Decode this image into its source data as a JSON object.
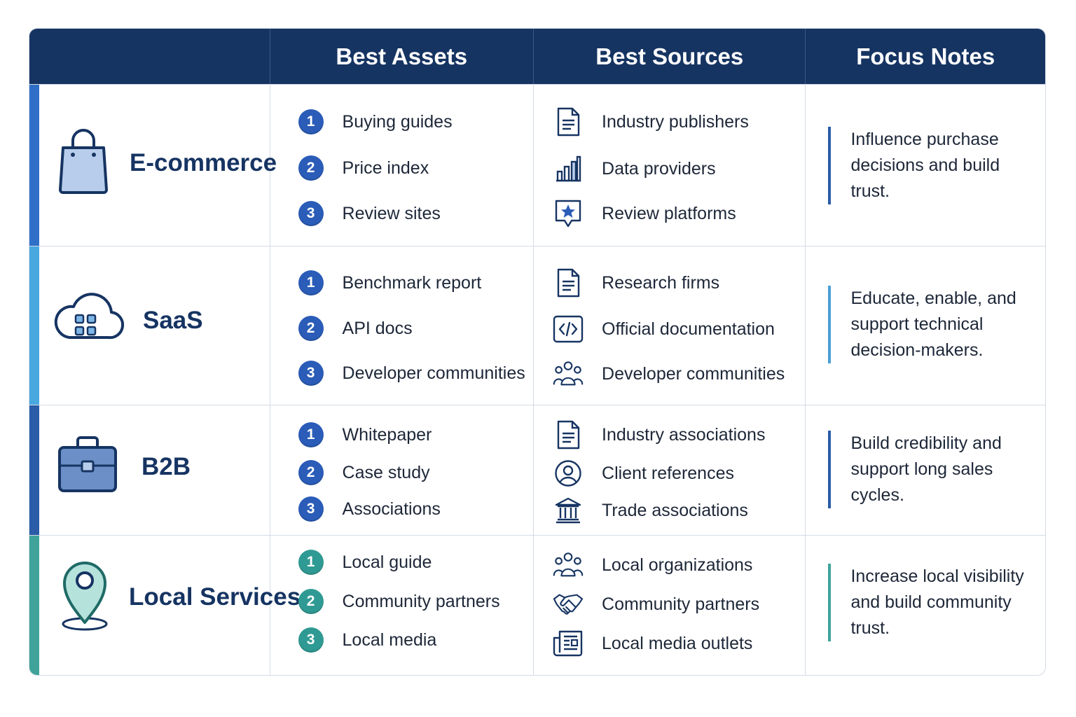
{
  "header": {
    "col0": "",
    "col1": "Best Assets",
    "col2": "Best Sources",
    "col3": "Focus Notes"
  },
  "rows": [
    {
      "category": "E-commerce",
      "icon": "shopping-bag-icon",
      "accent": "#2f6fc8",
      "badge_color": "#2a5cb8",
      "note_color": "#2a5ca8",
      "assets": [
        "Buying guides",
        "Price index",
        "Review sites"
      ],
      "sources": [
        {
          "icon": "document-icon",
          "label": "Industry publishers"
        },
        {
          "icon": "bar-chart-icon",
          "label": "Data providers"
        },
        {
          "icon": "star-badge-icon",
          "label": "Review platforms"
        }
      ],
      "note": "Influence purchase decisions and build trust."
    },
    {
      "category": "SaaS",
      "icon": "cloud-apps-icon",
      "accent": "#4aa8e0",
      "badge_color": "#2a5cb8",
      "note_color": "#4a9fd6",
      "assets": [
        "Benchmark report",
        "API docs",
        "Developer communities"
      ],
      "sources": [
        {
          "icon": "document-icon",
          "label": "Research firms"
        },
        {
          "icon": "code-icon",
          "label": "Official documentation"
        },
        {
          "icon": "people-icon",
          "label": "Developer communities"
        }
      ],
      "note": "Educate, enable, and support technical decision-makers."
    },
    {
      "category": "B2B",
      "icon": "briefcase-icon",
      "accent": "#2a5ca8",
      "badge_color": "#2a5cb8",
      "note_color": "#2a5ca8",
      "assets": [
        "Whitepaper",
        "Case study",
        "Associations"
      ],
      "sources": [
        {
          "icon": "document-icon",
          "label": "Industry associations"
        },
        {
          "icon": "user-circle-icon",
          "label": "Client references"
        },
        {
          "icon": "institution-icon",
          "label": "Trade associations"
        }
      ],
      "note": "Build credibility and support long sales cycles."
    },
    {
      "category": "Local Services",
      "icon": "map-pin-icon",
      "accent": "#3fa39a",
      "badge_color": "#2f9a93",
      "note_color": "#3fa39a",
      "assets": [
        "Local guide",
        "Community partners",
        "Local media"
      ],
      "sources": [
        {
          "icon": "people-icon",
          "label": "Local organizations"
        },
        {
          "icon": "handshake-icon",
          "label": "Community partners"
        },
        {
          "icon": "newspaper-icon",
          "label": "Local media outlets"
        }
      ],
      "note": "Increase local visibility and build community trust."
    }
  ]
}
